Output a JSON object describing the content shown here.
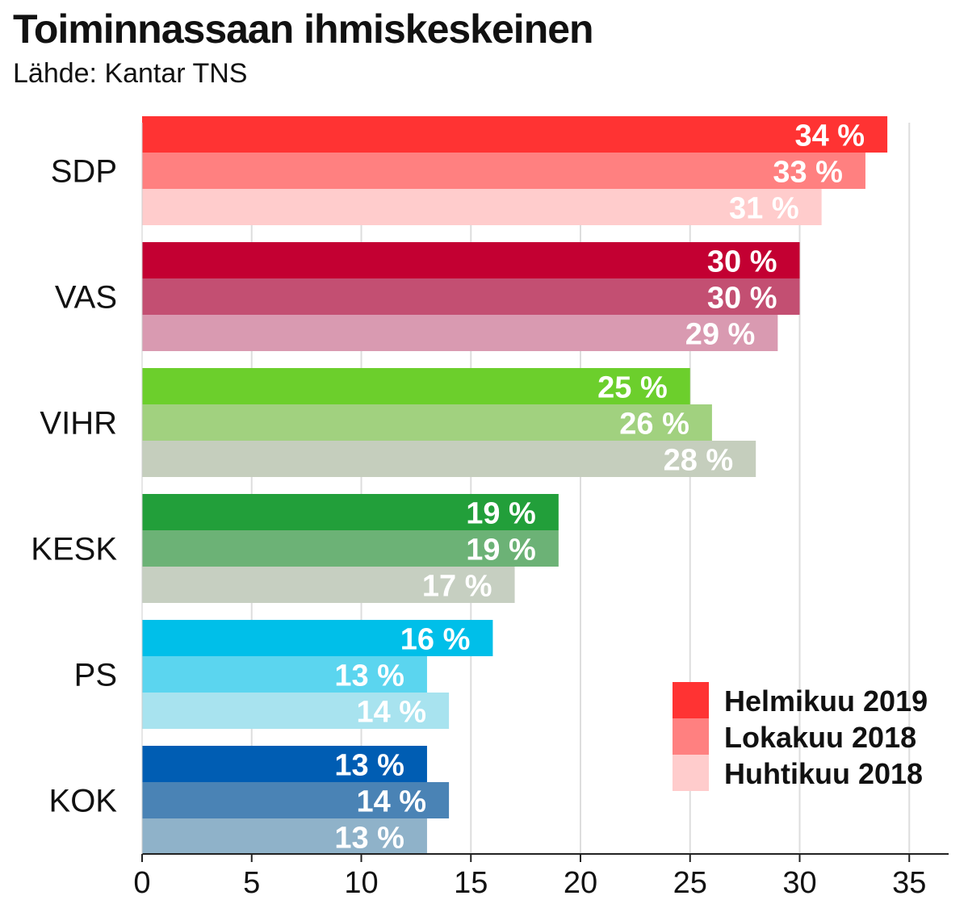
{
  "chart_data": {
    "type": "bar",
    "orientation": "horizontal",
    "title": "Toiminnassaan ihmiskeskeinen",
    "subtitle": "Lähde: Kantar TNS",
    "categories": [
      "SDP",
      "VAS",
      "VIHR",
      "KESK",
      "PS",
      "KOK"
    ],
    "series": [
      {
        "name": "Helmikuu 2019",
        "values": [
          34,
          30,
          25,
          19,
          16,
          13
        ]
      },
      {
        "name": "Lokakuu 2018",
        "values": [
          33,
          30,
          26,
          19,
          13,
          14
        ]
      },
      {
        "name": "Huhtikuu 2018",
        "values": [
          31,
          29,
          28,
          17,
          14,
          13
        ]
      }
    ],
    "value_suffix": " %",
    "xlim": [
      0,
      37
    ],
    "xticks": [
      0,
      5,
      10,
      15,
      20,
      25,
      30,
      35
    ],
    "grid": true,
    "legend_position": "bottom-right",
    "legend_colors": [
      "#ff3333",
      "#ff8080",
      "#ffcccc"
    ],
    "category_colors": [
      [
        "#ff3333",
        "#ff8080",
        "#ffcccc"
      ],
      [
        "#c30032",
        "#c34f72",
        "#d99ab1"
      ],
      [
        "#6ccf2c",
        "#a1d17f",
        "#c5cebd"
      ],
      [
        "#229f3a",
        "#6cb276",
        "#c6cfc1"
      ],
      [
        "#00bfe9",
        "#5bd5ef",
        "#a8e3ef"
      ],
      [
        "#005db3",
        "#4a83b5",
        "#8fb2c9"
      ]
    ]
  }
}
